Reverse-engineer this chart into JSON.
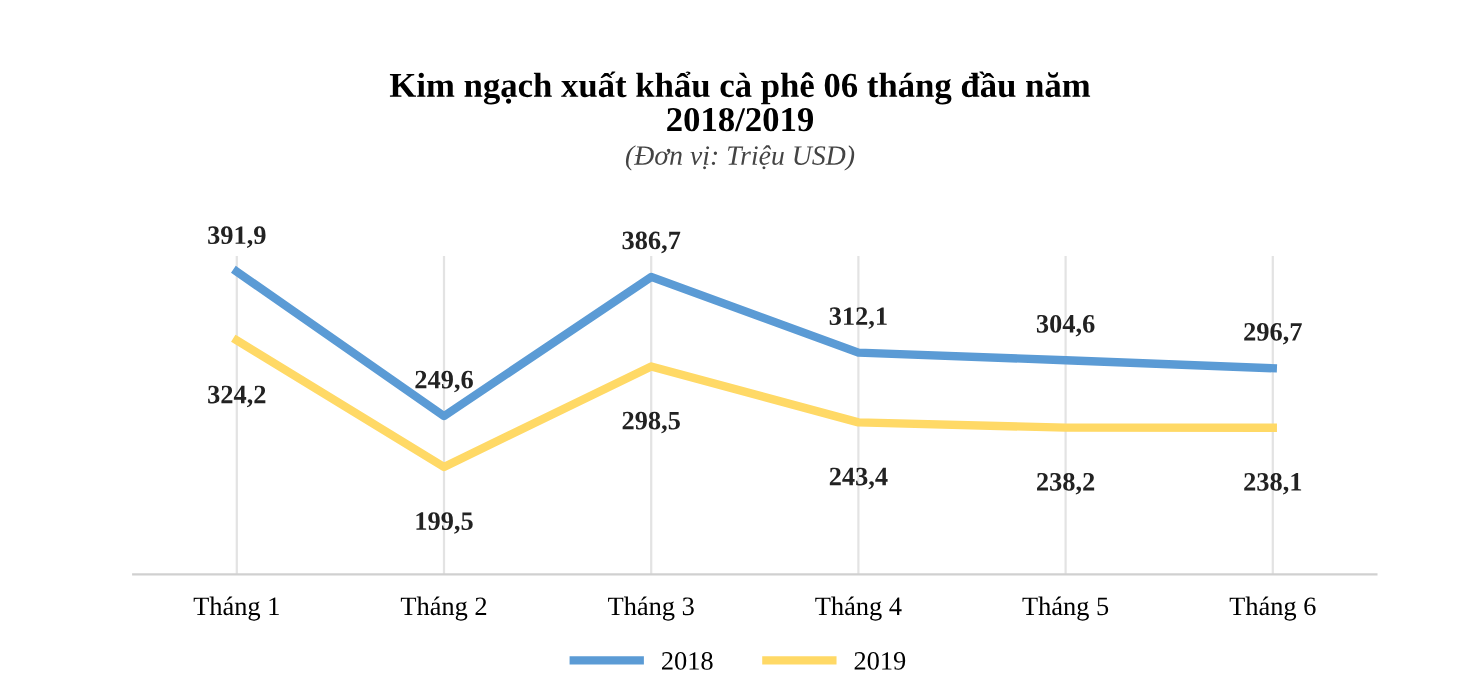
{
  "chart_data": {
    "type": "line",
    "title": "Kim ngạch xuất khẩu cà phê 06 tháng đầu năm\n2018/2019",
    "subtitle": "(Đơn vị: Triệu USD)",
    "categories": [
      "Tháng 1",
      "Tháng 2",
      "Tháng 3",
      "Tháng 4",
      "Tháng 5",
      "Tháng 6"
    ],
    "series": [
      {
        "name": "2018",
        "color": "#5b9bd5",
        "values": [
          391.9,
          249.6,
          386.7,
          312.1,
          304.6,
          296.7
        ],
        "value_labels": [
          "391,9",
          "249,6",
          "386,7",
          "312,1",
          "304,6",
          "296,7"
        ]
      },
      {
        "name": "2019",
        "color": "#ffd966",
        "values": [
          324.2,
          199.5,
          298.5,
          243.4,
          238.2,
          238.1
        ],
        "value_labels": [
          "324,2",
          "199,5",
          "298,5",
          "243,4",
          "238,2",
          "238,1"
        ]
      }
    ],
    "grid": "x",
    "legend": "bottom",
    "marker": "none",
    "line_style": "solid"
  }
}
